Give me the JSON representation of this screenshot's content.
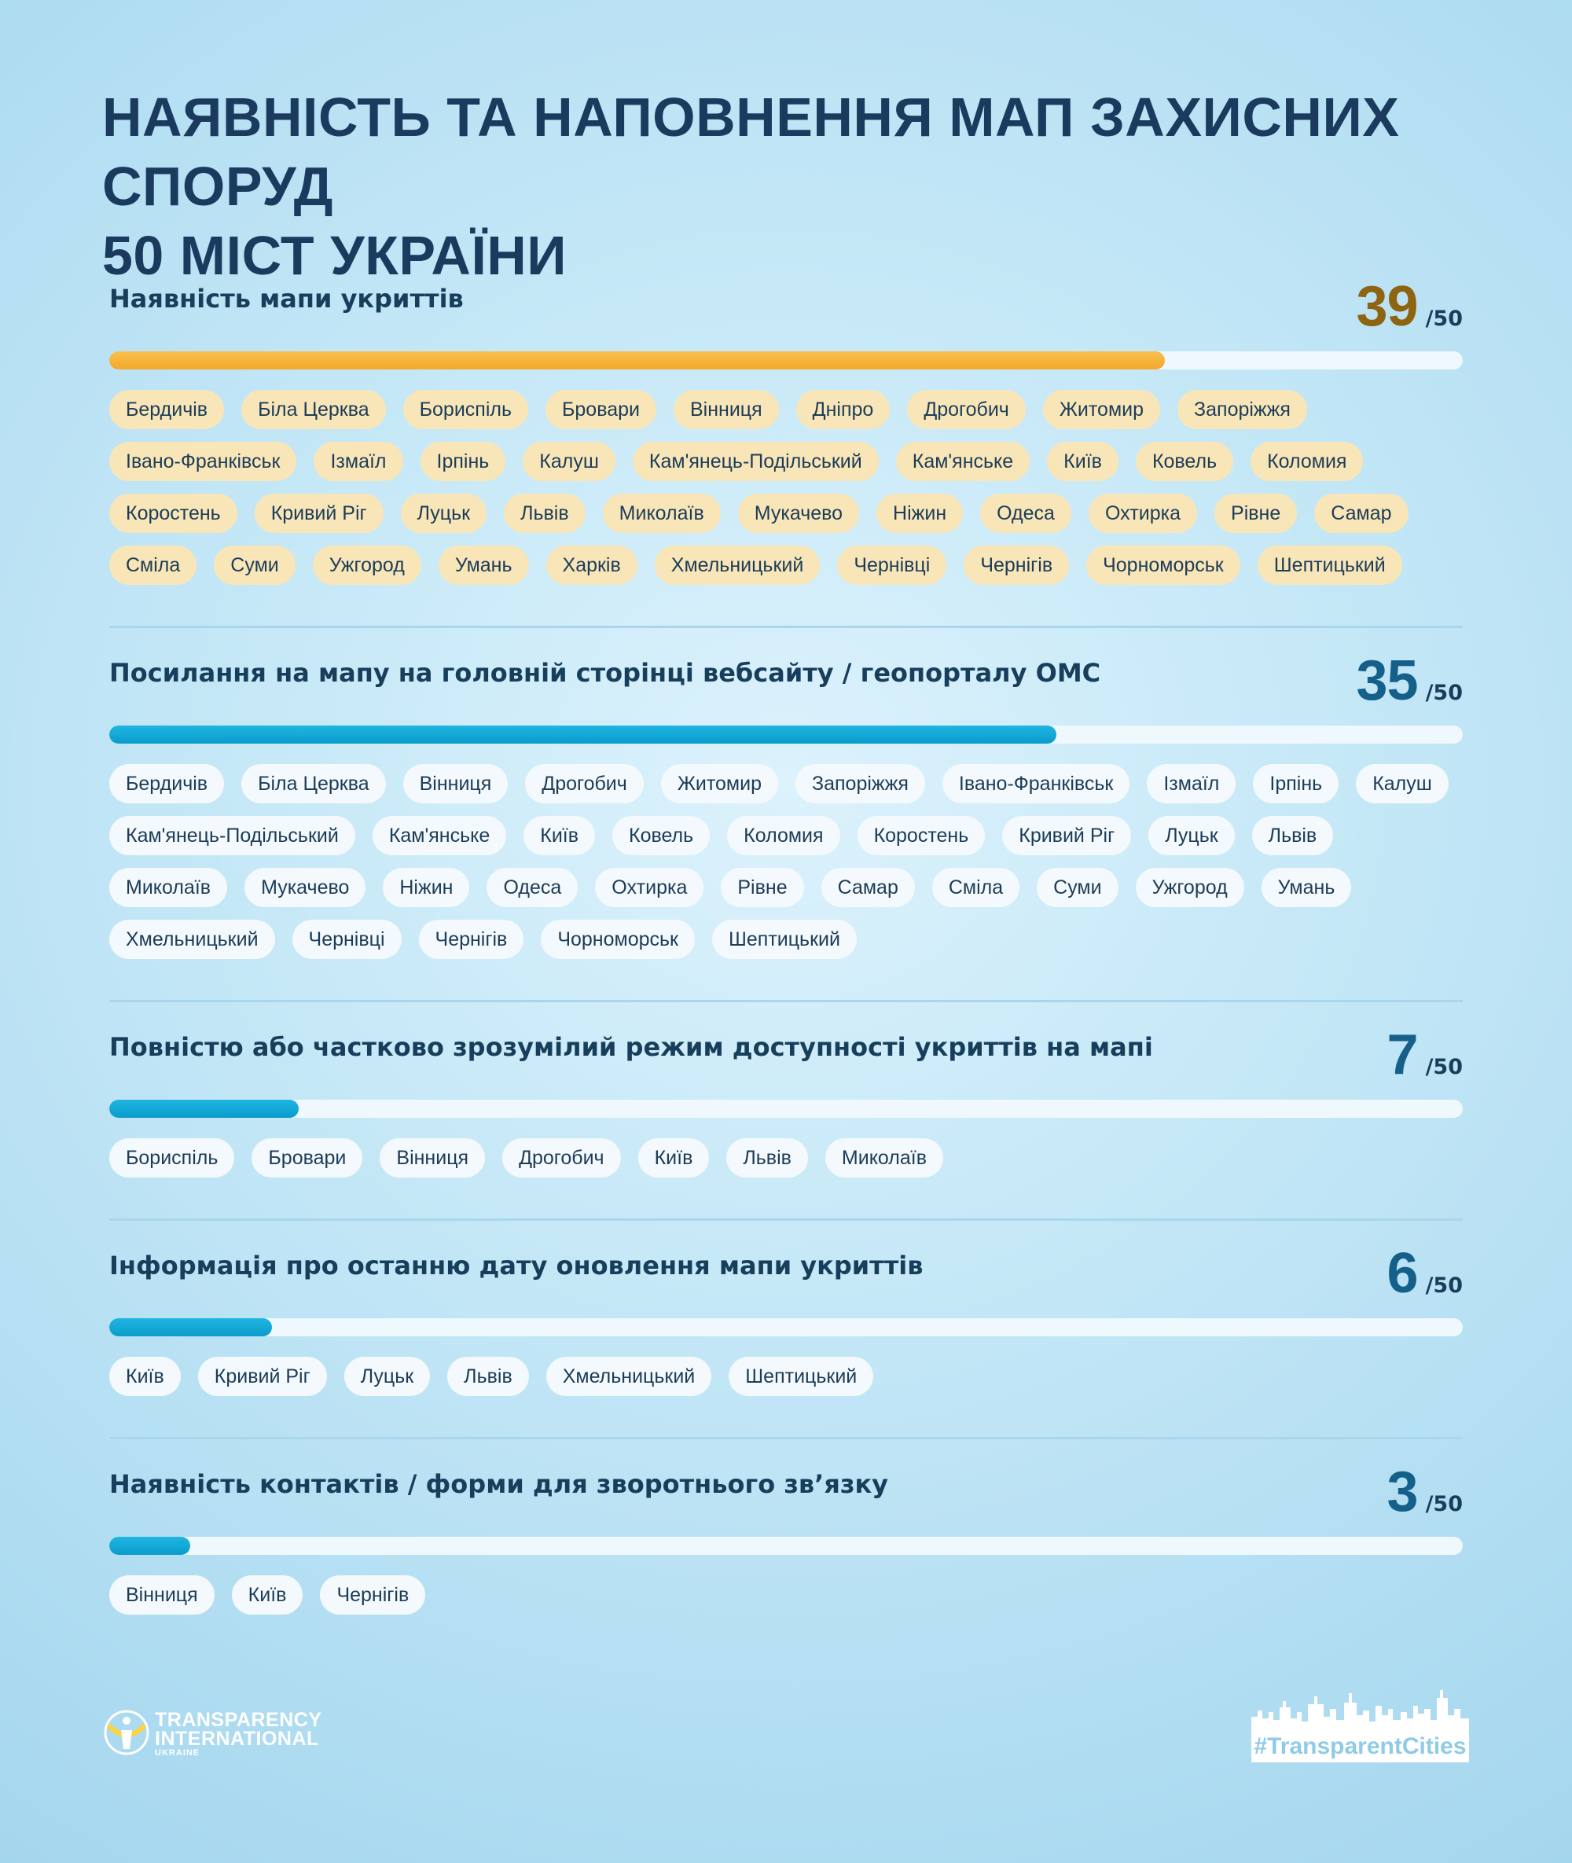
{
  "title": {
    "line1": "НАЯВНІСТЬ ТА НАПОВНЕННЯ МАП ЗАХИСНИХ СПОРУД",
    "line2": "50 МІСТ УКРАЇНИ"
  },
  "denominator_text": "/50",
  "colors": {
    "gold_bar": "#f5b03b",
    "blue_bar": "#0aa3d3",
    "gold_chip": "#f8e6b9",
    "white_chip": "#f3f9fc",
    "title": "#1b3b5e",
    "gold_count": "#8f6410",
    "blue_count": "#15608a"
  },
  "chart_data": {
    "type": "bar",
    "total": 50,
    "categories": [
      "Наявність мапи укриттів",
      "Посилання на мапу на головній сторінці вебсайту / геопорталу ОМС",
      "Повністю або частково зрозумілий режим доступності укриттів на мапі",
      "Інформація про останню дату оновлення мапи укриттів",
      "Наявність контактів / форми для зворотнього зв’язку"
    ],
    "values": [
      39,
      35,
      7,
      6,
      3
    ],
    "xlim": [
      0,
      50
    ]
  },
  "metrics": [
    {
      "label": "Наявність мапи укриттів",
      "count": "39",
      "value": 39,
      "cities": [
        "Бердичів",
        "Біла Церква",
        "Бориспіль",
        "Бровари",
        "Вінниця",
        "Дніпро",
        "Дрогобич",
        "Житомир",
        "Запоріжжя",
        "Івано-Франківськ",
        "Ізмаїл",
        "Ірпінь",
        "Калуш",
        "Кам'янець-Подільський",
        "Кам'янське",
        "Київ",
        "Ковель",
        "Коломия",
        "Коростень",
        "Кривий Ріг",
        "Луцьк",
        "Львів",
        "Миколаїв",
        "Мукачево",
        "Ніжин",
        "Одеса",
        "Охтирка",
        "Рівне",
        "Самар",
        "Сміла",
        "Суми",
        "Ужгород",
        "Умань",
        "Харків",
        "Хмельницький",
        "Чернівці",
        "Чернігів",
        "Чорноморськ",
        "Шептицький"
      ]
    },
    {
      "label": "Посилання на мапу на головній сторінці вебсайту / геопорталу ОМС",
      "count": "35",
      "value": 35,
      "cities": [
        "Бердичів",
        "Біла Церква",
        "Вінниця",
        "Дрогобич",
        "Житомир",
        "Запоріжжя",
        "Івано-Франківськ",
        "Ізмаїл",
        "Ірпінь",
        "Калуш",
        "Кам'янець-Подільський",
        "Кам'янське",
        "Київ",
        "Ковель",
        "Коломия",
        "Коростень",
        "Кривий Ріг",
        "Луцьк",
        "Львів",
        "Миколаїв",
        "Мукачево",
        "Ніжин",
        "Одеса",
        "Охтирка",
        "Рівне",
        "Самар",
        "Сміла",
        "Суми",
        "Ужгород",
        "Умань",
        "Хмельницький",
        "Чернівці",
        "Чернігів",
        "Чорноморськ",
        "Шептицький"
      ]
    },
    {
      "label": "Повністю або частково зрозумілий режим доступності укриттів на мапі",
      "count": "7",
      "value": 7,
      "cities": [
        "Бориспіль",
        "Бровари",
        "Вінниця",
        "Дрогобич",
        "Київ",
        "Львів",
        "Миколаїв"
      ]
    },
    {
      "label": "Інформація про останню дату оновлення мапи укриттів",
      "count": "6",
      "value": 6,
      "cities": [
        "Київ",
        "Кривий Ріг",
        "Луцьк",
        "Львів",
        "Хмельницький",
        "Шептицький"
      ]
    },
    {
      "label": "Наявність контактів / форми для зворотнього зв’язку",
      "count": "3",
      "value": 3,
      "cities": [
        "Вінниця",
        "Київ",
        "Чернігів"
      ]
    }
  ],
  "logos": {
    "ti": {
      "line1": "TRANSPARENCY",
      "line2": "INTERNATIONAL",
      "line3": "UKRAINE",
      "icon": "ti-logo-icon"
    },
    "tc": {
      "tag": "#TransparentCities",
      "icon": "city-skyline-icon"
    }
  }
}
